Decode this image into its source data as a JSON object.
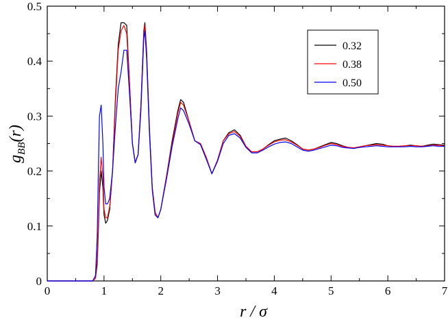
{
  "chart_data": {
    "type": "line",
    "title": "",
    "xlabel": "r / σ",
    "ylabel": "g_BB(r)",
    "ylabel_main": "g",
    "ylabel_sub": "BB",
    "ylabel_arg": "(r)",
    "xlim": [
      0,
      7
    ],
    "ylim": [
      0,
      0.5
    ],
    "grid": false,
    "legend_placement": "top-right",
    "x_ticks": [
      "0",
      "1",
      "2",
      "3",
      "4",
      "5",
      "6",
      "7"
    ],
    "y_ticks": [
      "0",
      "0.1",
      "0.2",
      "0.3",
      "0.4",
      "0.5"
    ],
    "x": [
      0.0,
      0.8,
      0.85,
      0.88,
      0.9,
      0.92,
      0.95,
      0.98,
      1.0,
      1.03,
      1.06,
      1.1,
      1.15,
      1.2,
      1.25,
      1.3,
      1.35,
      1.4,
      1.45,
      1.5,
      1.55,
      1.6,
      1.65,
      1.7,
      1.72,
      1.75,
      1.8,
      1.85,
      1.9,
      1.95,
      2.0,
      2.1,
      2.2,
      2.3,
      2.35,
      2.4,
      2.5,
      2.6,
      2.7,
      2.8,
      2.9,
      3.0,
      3.1,
      3.2,
      3.3,
      3.4,
      3.5,
      3.6,
      3.7,
      3.8,
      3.9,
      4.0,
      4.1,
      4.2,
      4.3,
      4.4,
      4.5,
      4.6,
      4.7,
      4.8,
      4.9,
      5.0,
      5.1,
      5.2,
      5.3,
      5.4,
      5.5,
      5.6,
      5.7,
      5.8,
      5.9,
      6.0,
      6.1,
      6.2,
      6.3,
      6.4,
      6.5,
      6.6,
      6.7,
      6.8,
      6.9,
      7.0
    ],
    "series": [
      {
        "name": "0.32",
        "color": "#000000",
        "values": [
          0.0,
          0.0,
          0.005,
          0.03,
          0.09,
          0.16,
          0.2,
          0.17,
          0.12,
          0.105,
          0.11,
          0.13,
          0.2,
          0.33,
          0.43,
          0.47,
          0.47,
          0.465,
          0.36,
          0.25,
          0.215,
          0.23,
          0.32,
          0.455,
          0.47,
          0.42,
          0.28,
          0.17,
          0.125,
          0.115,
          0.13,
          0.19,
          0.255,
          0.31,
          0.33,
          0.325,
          0.29,
          0.255,
          0.25,
          0.225,
          0.195,
          0.22,
          0.255,
          0.27,
          0.275,
          0.265,
          0.245,
          0.235,
          0.235,
          0.24,
          0.248,
          0.255,
          0.258,
          0.26,
          0.255,
          0.248,
          0.24,
          0.238,
          0.24,
          0.244,
          0.248,
          0.252,
          0.25,
          0.246,
          0.243,
          0.242,
          0.244,
          0.246,
          0.248,
          0.25,
          0.249,
          0.246,
          0.245,
          0.245,
          0.246,
          0.247,
          0.246,
          0.245,
          0.247,
          0.249,
          0.248,
          0.247
        ]
      },
      {
        "name": "0.38",
        "color": "#ff0000",
        "values": [
          0.0,
          0.0,
          0.005,
          0.04,
          0.1,
          0.18,
          0.225,
          0.19,
          0.13,
          0.115,
          0.115,
          0.135,
          0.2,
          0.32,
          0.42,
          0.455,
          0.465,
          0.45,
          0.36,
          0.25,
          0.215,
          0.23,
          0.32,
          0.45,
          0.465,
          0.415,
          0.275,
          0.17,
          0.125,
          0.115,
          0.13,
          0.19,
          0.25,
          0.305,
          0.325,
          0.32,
          0.29,
          0.255,
          0.25,
          0.225,
          0.195,
          0.22,
          0.255,
          0.268,
          0.272,
          0.263,
          0.245,
          0.235,
          0.235,
          0.24,
          0.247,
          0.253,
          0.256,
          0.257,
          0.253,
          0.247,
          0.24,
          0.238,
          0.24,
          0.243,
          0.247,
          0.25,
          0.248,
          0.245,
          0.243,
          0.242,
          0.244,
          0.246,
          0.247,
          0.248,
          0.247,
          0.246,
          0.245,
          0.245,
          0.246,
          0.246,
          0.246,
          0.245,
          0.246,
          0.247,
          0.247,
          0.246
        ]
      },
      {
        "name": "0.50",
        "color": "#0000ff",
        "values": [
          0.0,
          0.0,
          0.01,
          0.08,
          0.2,
          0.3,
          0.32,
          0.25,
          0.17,
          0.14,
          0.14,
          0.15,
          0.2,
          0.28,
          0.35,
          0.38,
          0.42,
          0.42,
          0.34,
          0.25,
          0.215,
          0.23,
          0.31,
          0.44,
          0.455,
          0.405,
          0.27,
          0.165,
          0.12,
          0.115,
          0.13,
          0.185,
          0.245,
          0.295,
          0.315,
          0.31,
          0.285,
          0.255,
          0.248,
          0.222,
          0.195,
          0.218,
          0.25,
          0.265,
          0.268,
          0.26,
          0.243,
          0.233,
          0.233,
          0.238,
          0.244,
          0.249,
          0.252,
          0.253,
          0.25,
          0.244,
          0.238,
          0.236,
          0.238,
          0.241,
          0.244,
          0.247,
          0.246,
          0.243,
          0.242,
          0.241,
          0.243,
          0.244,
          0.245,
          0.246,
          0.245,
          0.244,
          0.244,
          0.244,
          0.244,
          0.245,
          0.244,
          0.244,
          0.245,
          0.246,
          0.245,
          0.245
        ]
      }
    ]
  }
}
